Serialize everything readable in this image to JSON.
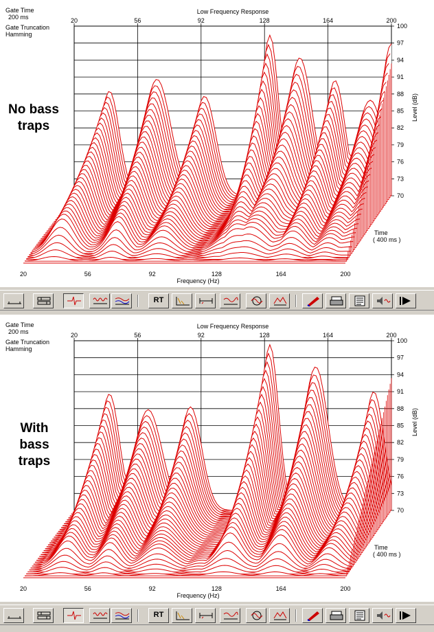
{
  "panels": [
    {
      "overlay_lines": [
        "No bass",
        "traps"
      ],
      "chart_data": {
        "type": "waterfall",
        "title": "Low Frequency Response",
        "xlabel": "Frequency (Hz)",
        "ylabel": "Level (dB)",
        "zlabel": "Time",
        "zrange_label": "( 400 ms )",
        "x_ticks": [
          "20",
          "56",
          "92",
          "128",
          "164",
          "200"
        ],
        "y_ticks": [
          "100",
          "97",
          "94",
          "91",
          "88",
          "85",
          "82",
          "79",
          "76",
          "73",
          "70"
        ],
        "xlim": [
          20,
          200
        ],
        "ylim": [
          70,
          100
        ],
        "info": [
          "Gate Time",
          "200 ms",
          "Gate Truncation",
          "Hamming"
        ],
        "line_color": "#dd0000",
        "peaks_front": [
          {
            "freq": 36,
            "level": 85.2
          },
          {
            "freq": 68,
            "level": 82.6
          },
          {
            "freq": 93,
            "level": 78.4
          },
          {
            "freq": 125,
            "level": 73.9
          },
          {
            "freq": 140,
            "level": 80.7
          },
          {
            "freq": 165,
            "level": 77.8
          },
          {
            "freq": 186,
            "level": 74.5
          }
        ],
        "peaks_back": [
          {
            "freq": 40,
            "level": 88.5
          },
          {
            "freq": 67,
            "level": 90.6
          },
          {
            "freq": 94,
            "level": 87.6
          },
          {
            "freq": 131,
            "level": 98.4
          },
          {
            "freq": 148,
            "level": 94.4
          },
          {
            "freq": 168,
            "level": 90.4
          },
          {
            "freq": 188,
            "level": 86.9
          },
          {
            "freq": 200,
            "level": 96.9
          }
        ]
      }
    },
    {
      "overlay_lines": [
        "With",
        "bass",
        "traps"
      ],
      "chart_data": {
        "type": "waterfall",
        "title": "Low Frequency Response",
        "xlabel": "Frequency (Hz)",
        "ylabel": "Level (dB)",
        "zlabel": "Time",
        "zrange_label": "( 400 ms )",
        "x_ticks": [
          "20",
          "56",
          "92",
          "128",
          "164",
          "200"
        ],
        "y_ticks": [
          "100",
          "97",
          "94",
          "91",
          "88",
          "85",
          "82",
          "79",
          "76",
          "73",
          "70"
        ],
        "xlim": [
          20,
          200
        ],
        "ylim": [
          70,
          100
        ],
        "info": [
          "Gate Time",
          "200 ms",
          "Gate Truncation",
          "Hamming"
        ],
        "line_color": "#dd0000",
        "peaks_front": [
          {
            "freq": 40,
            "level": 80.0
          },
          {
            "freq": 64,
            "level": 79.8
          },
          {
            "freq": 93,
            "level": 77.8
          },
          {
            "freq": 115,
            "level": 73.4
          },
          {
            "freq": 131,
            "level": 82.7
          },
          {
            "freq": 160,
            "level": 82.7
          },
          {
            "freq": 185,
            "level": 77.2
          }
        ],
        "peaks_back": [
          {
            "freq": 40,
            "level": 90.6
          },
          {
            "freq": 62,
            "level": 87.8
          },
          {
            "freq": 86,
            "level": 88.3
          },
          {
            "freq": 131,
            "level": 99.3
          },
          {
            "freq": 157,
            "level": 95.4
          },
          {
            "freq": 190,
            "level": 91.0
          }
        ]
      }
    }
  ],
  "toolbar": {
    "rt_label": "RT",
    "buttons": [
      "baseline-icon",
      "slider-icon",
      "impulse-icon",
      "burst-icon",
      "multi-curve-icon",
      "rt-button",
      "decay-icon",
      "gate-icon",
      "response-icon",
      "frequency-icon",
      "waterfall-icon",
      "color-pen-icon",
      "print-icon",
      "notes-icon",
      "speaker-icon",
      "play-icon"
    ]
  }
}
